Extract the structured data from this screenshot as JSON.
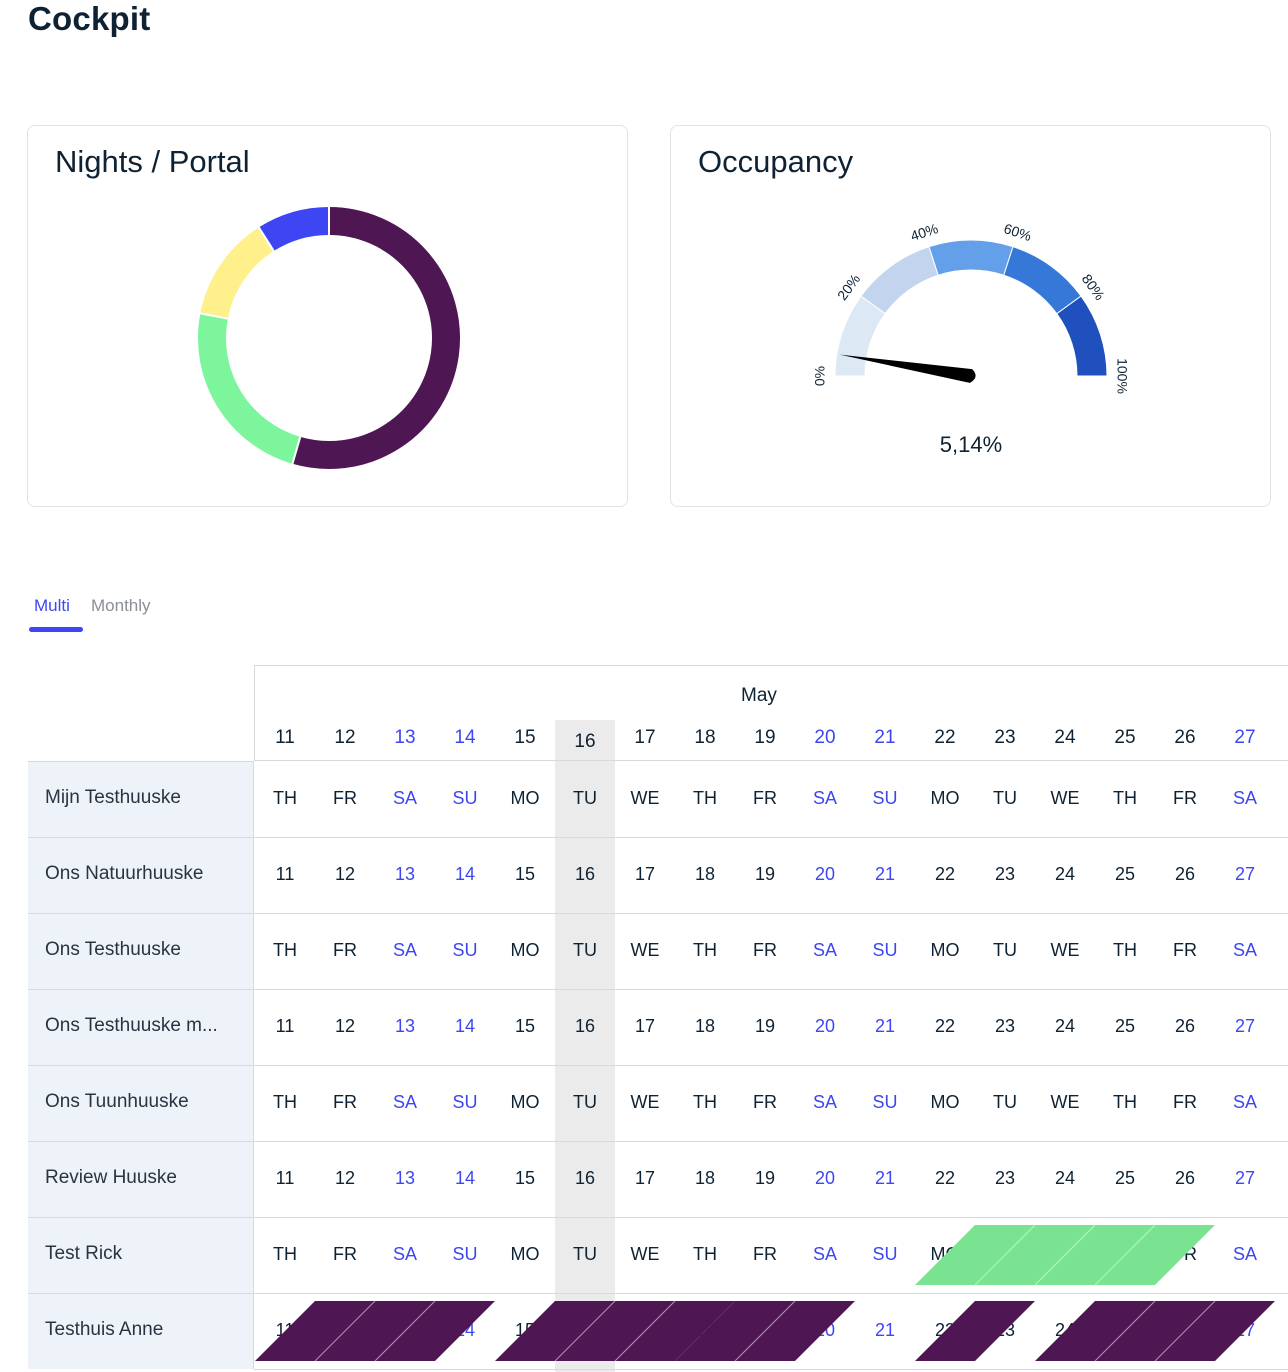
{
  "page": {
    "title": "Cockpit"
  },
  "nights_card": {
    "title": "Nights / Portal",
    "slices": [
      {
        "value": 54.5,
        "color": "#4e1754"
      },
      {
        "value": 23.5,
        "color": "#7cf59c"
      },
      {
        "value": 13.0,
        "color": "#fff08c"
      },
      {
        "value": 9.0,
        "color": "#3d46f2"
      }
    ]
  },
  "occupancy_card": {
    "title": "Occupancy",
    "value_label": "5,14%",
    "value": 5.14,
    "tick_labels": [
      "0%",
      "20%",
      "40%",
      "60%",
      "80%",
      "100%"
    ],
    "band_colors": [
      "#dde8f5",
      "#c3d5ee",
      "#64a0ea",
      "#3578d8",
      "#1f50bd"
    ]
  },
  "tabs": {
    "multi": "Multi",
    "monthly": "Monthly"
  },
  "calendar": {
    "month": "May",
    "days": [
      {
        "num": "11",
        "dow": "TH",
        "weekend": false
      },
      {
        "num": "12",
        "dow": "FR",
        "weekend": false
      },
      {
        "num": "13",
        "dow": "SA",
        "weekend": true
      },
      {
        "num": "14",
        "dow": "SU",
        "weekend": true
      },
      {
        "num": "15",
        "dow": "MO",
        "weekend": false
      },
      {
        "num": "16",
        "dow": "TU",
        "weekend": false,
        "today": true
      },
      {
        "num": "17",
        "dow": "WE",
        "weekend": false
      },
      {
        "num": "18",
        "dow": "TH",
        "weekend": false
      },
      {
        "num": "19",
        "dow": "FR",
        "weekend": false
      },
      {
        "num": "20",
        "dow": "SA",
        "weekend": true
      },
      {
        "num": "21",
        "dow": "SU",
        "weekend": true
      },
      {
        "num": "22",
        "dow": "MO",
        "weekend": false
      },
      {
        "num": "23",
        "dow": "TU",
        "weekend": false
      },
      {
        "num": "24",
        "dow": "WE",
        "weekend": false
      },
      {
        "num": "25",
        "dow": "TH",
        "weekend": false
      },
      {
        "num": "26",
        "dow": "FR",
        "weekend": false
      },
      {
        "num": "27",
        "dow": "SA",
        "weekend": true
      }
    ],
    "rows": [
      {
        "name": "Mijn Testhuuske",
        "mode": "dow"
      },
      {
        "name": "Ons Natuurhuuske",
        "mode": "num"
      },
      {
        "name": "Ons Testhuuske",
        "mode": "dow"
      },
      {
        "name": "Ons Testhuuske m...",
        "mode": "num"
      },
      {
        "name": "Ons Tuunhuuske",
        "mode": "dow"
      },
      {
        "name": "Review Huuske",
        "mode": "num"
      },
      {
        "name": "Test Rick",
        "mode": "dow"
      },
      {
        "name": "Testhuis Anne",
        "mode": "num"
      }
    ],
    "bookings": [
      {
        "row": 6,
        "start_day": 11,
        "nights": 4,
        "color": "#79e391"
      },
      {
        "row": 7,
        "start_day": 0,
        "nights": 3,
        "color": "#4e1754"
      },
      {
        "row": 7,
        "start_day": 4,
        "nights": 3,
        "color": "#4e1754"
      },
      {
        "row": 7,
        "start_day": 7,
        "nights": 2,
        "color": "#4e1754"
      },
      {
        "row": 7,
        "start_day": 11,
        "nights": 1,
        "color": "#4e1754"
      },
      {
        "row": 7,
        "start_day": 13,
        "nights": 3,
        "color": "#4e1754"
      }
    ]
  }
}
